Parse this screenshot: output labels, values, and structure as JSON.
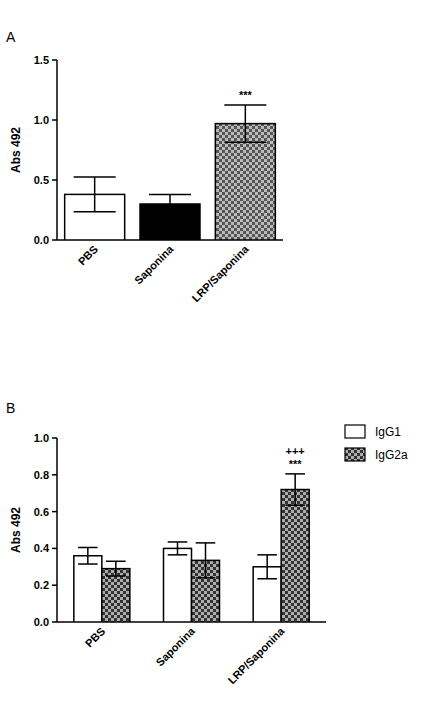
{
  "chart_data": [
    {
      "type": "bar",
      "title": "A",
      "ylabel": "Abs 492",
      "categories": [
        "PBS",
        "Saponina",
        "LRP/Saponina"
      ],
      "values": [
        0.38,
        0.3,
        0.97
      ],
      "errors": [
        0.145,
        0.08,
        0.155
      ],
      "colors": [
        "#ffffff",
        "#000000",
        "#555555"
      ],
      "annotations": [
        null,
        null,
        "***"
      ],
      "ylim": [
        0,
        1.5
      ],
      "yticks": [
        {
          "value": 0,
          "label": "0.0"
        },
        0.5,
        {
          "value": 1,
          "label": "1.0"
        },
        1.5
      ]
    },
    {
      "type": "bar",
      "title": "B",
      "ylabel": "Abs 492",
      "categories": [
        "PBS",
        "Saponina",
        "LRP/Saponina"
      ],
      "series": [
        {
          "name": "IgG1",
          "color": "#ffffff",
          "values": [
            0.36,
            0.4,
            0.3
          ],
          "errors": [
            0.045,
            0.035,
            0.065
          ]
        },
        {
          "name": "IgG2a",
          "color": "#333333",
          "values": [
            0.29,
            0.335,
            0.72
          ],
          "errors": [
            0.04,
            0.095,
            0.085
          ],
          "annotations": [
            null,
            null,
            [
              "+++",
              "***"
            ]
          ]
        }
      ],
      "legend": "right",
      "ylim": [
        0,
        1
      ],
      "yticks": [
        {
          "value": 0,
          "label": "0.0"
        },
        0.2,
        0.4,
        0.6,
        0.8,
        {
          "value": 1,
          "label": "1.0"
        }
      ]
    }
  ]
}
